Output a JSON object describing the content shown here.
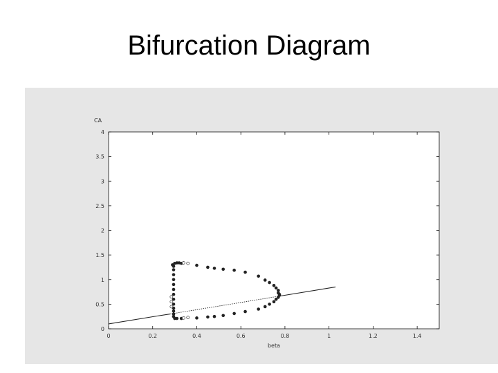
{
  "slide": {
    "title": "Bifurcation Diagram"
  },
  "chart_data": {
    "type": "scatter",
    "title": "",
    "xlabel": "beta",
    "ylabel": "CA",
    "xlim": [
      0,
      1.5
    ],
    "ylim": [
      0,
      4
    ],
    "x_ticks": [
      "0",
      "0.2",
      "0.4",
      "0.6",
      "0.8",
      "1",
      "1.2",
      "1.4"
    ],
    "y_ticks": [
      "0",
      "0.5",
      "1",
      "1.5",
      "2",
      "2.5",
      "3",
      "3.5",
      "4"
    ],
    "grid": false,
    "series": [
      {
        "role": "stable steady state",
        "style": "solid-line",
        "points": [
          [
            0,
            0.1
          ],
          [
            0.22,
            0.26
          ],
          [
            0.28,
            0.3
          ]
        ]
      },
      {
        "role": "unstable steady state",
        "style": "dotted-line",
        "points": [
          [
            0.28,
            0.3
          ],
          [
            0.77,
            0.66
          ]
        ]
      },
      {
        "role": "stable steady state",
        "style": "solid-line",
        "points": [
          [
            0.77,
            0.66
          ],
          [
            1.03,
            0.85
          ]
        ]
      },
      {
        "role": "stable periodic max",
        "style": "filled-dots",
        "points": [
          [
            0.29,
            1.3
          ],
          [
            0.3,
            1.33
          ],
          [
            0.31,
            1.34
          ],
          [
            0.32,
            1.34
          ],
          [
            0.33,
            1.33
          ],
          [
            0.4,
            1.29
          ],
          [
            0.45,
            1.25
          ],
          [
            0.48,
            1.23
          ],
          [
            0.52,
            1.21
          ],
          [
            0.57,
            1.19
          ],
          [
            0.62,
            1.15
          ],
          [
            0.68,
            1.07
          ],
          [
            0.71,
            0.99
          ],
          [
            0.73,
            0.94
          ],
          [
            0.75,
            0.88
          ],
          [
            0.76,
            0.83
          ],
          [
            0.77,
            0.78
          ],
          [
            0.77,
            0.73
          ],
          [
            0.775,
            0.7
          ]
        ]
      },
      {
        "role": "stable periodic min",
        "style": "filled-dots",
        "points": [
          [
            0.3,
            0.21
          ],
          [
            0.31,
            0.21
          ],
          [
            0.33,
            0.21
          ],
          [
            0.4,
            0.22
          ],
          [
            0.45,
            0.24
          ],
          [
            0.48,
            0.25
          ],
          [
            0.52,
            0.27
          ],
          [
            0.57,
            0.31
          ],
          [
            0.62,
            0.35
          ],
          [
            0.68,
            0.4
          ],
          [
            0.71,
            0.45
          ],
          [
            0.73,
            0.5
          ],
          [
            0.75,
            0.55
          ],
          [
            0.76,
            0.6
          ],
          [
            0.77,
            0.64
          ],
          [
            0.775,
            0.68
          ]
        ]
      },
      {
        "role": "periodic branch vertical",
        "style": "filled-dots",
        "points": [
          [
            0.295,
            0.25
          ],
          [
            0.295,
            0.3
          ],
          [
            0.295,
            0.36
          ],
          [
            0.295,
            0.42
          ],
          [
            0.295,
            0.5
          ],
          [
            0.295,
            0.6
          ],
          [
            0.295,
            0.7
          ],
          [
            0.295,
            0.8
          ],
          [
            0.295,
            0.9
          ],
          [
            0.295,
            1.0
          ],
          [
            0.295,
            1.1
          ],
          [
            0.295,
            1.2
          ],
          [
            0.295,
            1.27
          ]
        ]
      },
      {
        "role": "unstable periodic",
        "style": "open-circles",
        "points": [
          [
            0.34,
            1.34
          ],
          [
            0.36,
            1.33
          ],
          [
            0.285,
            0.45
          ],
          [
            0.285,
            0.55
          ],
          [
            0.285,
            0.65
          ],
          [
            0.34,
            0.22
          ],
          [
            0.36,
            0.23
          ]
        ]
      }
    ]
  }
}
